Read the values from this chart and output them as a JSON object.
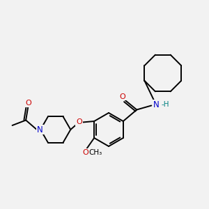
{
  "background_color": "#f2f2f2",
  "bond_color": "#000000",
  "atom_colors": {
    "N": "#0000cc",
    "O": "#cc0000",
    "H": "#008080",
    "C": "#000000"
  },
  "figsize": [
    3.0,
    3.0
  ],
  "dpi": 100
}
